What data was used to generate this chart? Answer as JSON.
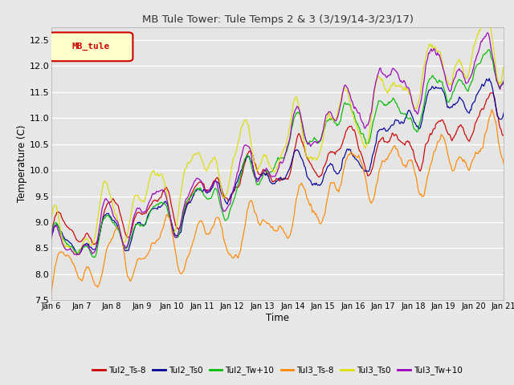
{
  "title": "MB Tule Tower: Tule Temps 2 & 3 (3/19/14-3/23/17)",
  "xlabel": "Time",
  "ylabel": "Temperature (C)",
  "ylim": [
    7.5,
    12.75
  ],
  "xlim": [
    0,
    15
  ],
  "background_color": "#e8e8e8",
  "plot_bg_color": "#e5e5e5",
  "grid_color": "#ffffff",
  "series": [
    {
      "label": "Tul2_Ts-8",
      "color": "#cc0000"
    },
    {
      "label": "Tul2_Ts0",
      "color": "#000099"
    },
    {
      "label": "Tul2_Tw+10",
      "color": "#00bb00"
    },
    {
      "label": "Tul3_Ts-8",
      "color": "#ff8800"
    },
    {
      "label": "Tul3_Ts0",
      "color": "#dddd00"
    },
    {
      "label": "Tul3_Tw+10",
      "color": "#9900bb"
    }
  ],
  "xtick_labels": [
    "Jan 6",
    "Jan 7",
    "Jan 8",
    "Jan 9",
    "Jan 10",
    "Jan 11",
    "Jan 12",
    "Jan 13",
    "Jan 14",
    "Jan 15",
    "Jan 16",
    "Jan 17",
    "Jan 18",
    "Jan 19",
    "Jan 20",
    "Jan 21"
  ],
  "legend_label": "MB_tule",
  "legend_bg": "#ffffcc",
  "legend_border": "#cc0000"
}
